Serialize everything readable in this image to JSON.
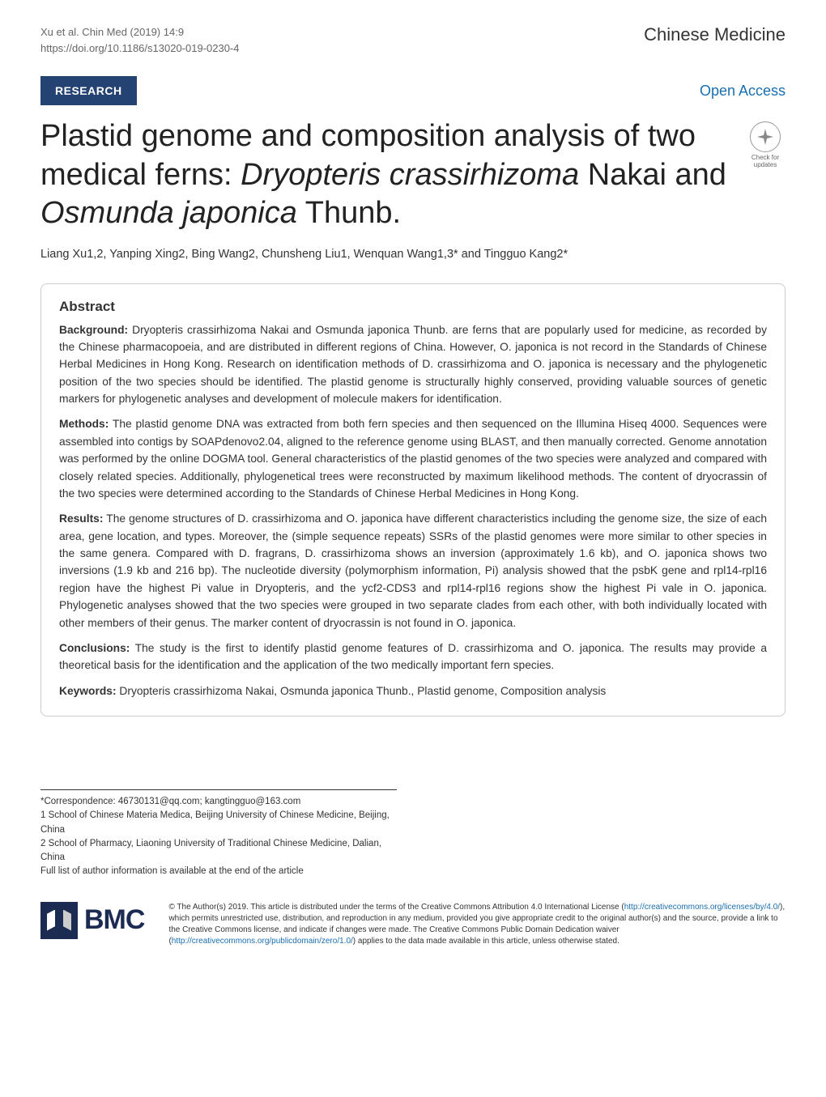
{
  "header": {
    "citation": "Xu et al. Chin Med       (2019) 14:9",
    "doi": "https://doi.org/10.1186/s13020-019-0230-4",
    "journal": "Chinese Medicine"
  },
  "section": {
    "type_label": "RESEARCH",
    "access_label": "Open Access"
  },
  "crossmark": {
    "line1": "Check for",
    "line2": "updates"
  },
  "title_parts": {
    "pre1": "Plastid genome and composition analysis of two medical ferns: ",
    "italic1": "Dryopteris crassirhizoma",
    "mid1": " Nakai and ",
    "italic2": "Osmunda japonica",
    "post1": " Thunb."
  },
  "authors": "Liang Xu1,2, Yanping Xing2, Bing Wang2, Chunsheng Liu1, Wenquan Wang1,3* and Tingguo Kang2*",
  "abstract": {
    "heading": "Abstract",
    "background": {
      "label": "Background:",
      "content": " Dryopteris crassirhizoma Nakai and Osmunda japonica Thunb. are ferns that are popularly used for medicine, as recorded by the Chinese pharmacopoeia, and are distributed in different regions of China. However, O. japonica is not record in the Standards of Chinese Herbal Medicines in Hong Kong. Research on identification methods of D. crassirhizoma and O. japonica is necessary and the phylogenetic position of the two species should be identified. The plastid genome is structurally highly conserved, providing valuable sources of genetic markers for phylogenetic analyses and development of molecule makers for identification."
    },
    "methods": {
      "label": "Methods:",
      "content": " The plastid genome DNA was extracted from both fern species and then sequenced on the Illumina Hiseq 4000. Sequences were assembled into contigs by SOAPdenovo2.04, aligned to the reference genome using BLAST, and then manually corrected. Genome annotation was performed by the online DOGMA tool. General characteristics of the plastid genomes of the two species were analyzed and compared with closely related species. Additionally, phylogenetical trees were reconstructed by maximum likelihood methods. The content of dryocrassin of the two species were determined according to the Standards of Chinese Herbal Medicines in Hong Kong."
    },
    "results": {
      "label": "Results:",
      "content": " The genome structures of D. crassirhizoma and O. japonica have different characteristics including the genome size, the size of each area, gene location, and types. Moreover, the (simple sequence repeats) SSRs of the plastid genomes were more similar to other species in the same genera. Compared with D. fragrans, D. crassirhizoma shows an inversion (approximately 1.6 kb), and O. japonica shows two inversions (1.9 kb and 216 bp). The nucleotide diversity (polymorphism information, Pi) analysis showed that the psbK gene and rpl14-rpl16 region have the highest Pi value in Dryopteris, and the ycf2-CDS3 and rpl14-rpl16 regions show the highest Pi vale in O. japonica. Phylogenetic analyses showed that the two species were grouped in two separate clades from each other, with both individually located with other members of their genus. The marker content of dryocrassin is not found in O. japonica."
    },
    "conclusions": {
      "label": "Conclusions:",
      "content": " The study is the first to identify plastid genome features of D. crassirhizoma and O. japonica. The results may provide a theoretical basis for the identification and the application of the two medically important fern species."
    },
    "keywords": {
      "label": "Keywords:",
      "content": " Dryopteris crassirhizoma Nakai, Osmunda japonica Thunb., Plastid genome, Composition analysis"
    }
  },
  "footer": {
    "correspondence": "*Correspondence: 46730131@qq.com; kangtingguo@163.com",
    "affil1": "1 School of Chinese Materia Medica, Beijing University of Chinese Medicine, Beijing, China",
    "affil2": "2 School of Pharmacy, Liaoning University of Traditional Chinese Medicine, Dalian, China",
    "affil_note": "Full list of author information is available at the end of the article"
  },
  "logo": {
    "text": "BMC"
  },
  "license": {
    "text_pre": "© The Author(s) 2019. This article is distributed under the terms of the Creative Commons Attribution 4.0 International License (",
    "link1": "http://creativecommons.org/licenses/by/4.0/",
    "text_mid": "), which permits unrestricted use, distribution, and reproduction in any medium, provided you give appropriate credit to the original author(s) and the source, provide a link to the Creative Commons license, and indicate if changes were made. The Creative Commons Public Domain Dedication waiver (",
    "link2": "http://creativecommons.org/publicdomain/zero/1.0/",
    "text_post": ") applies to the data made available in this article, unless otherwise stated."
  },
  "colors": {
    "badge_bg": "#244373",
    "open_access": "#1a6fb0",
    "bmc_navy": "#1c2b52",
    "border": "#cccccc",
    "text_body": "#333333"
  }
}
